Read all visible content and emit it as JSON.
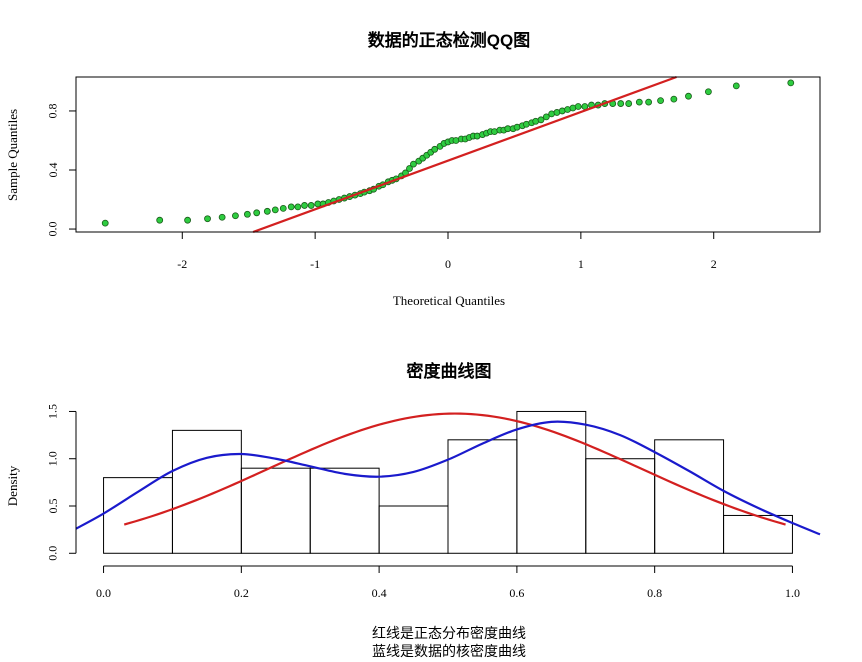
{
  "chart_data": [
    {
      "type": "scatter",
      "title": "数据的正态检测QQ图",
      "xlabel": "Theoretical Quantiles",
      "ylabel": "Sample Quantiles",
      "xlim": [
        -2.8,
        2.8
      ],
      "ylim": [
        -0.02,
        1.03
      ],
      "xticks": [
        -2,
        -1,
        0,
        1,
        2
      ],
      "yticks": [
        0.0,
        0.4,
        0.8
      ],
      "grid": false,
      "colors": {
        "points": "#2ecc40",
        "point_edge": "#1a5c1a",
        "reference_line": "#d32020"
      },
      "points": [
        [
          -2.58,
          0.04
        ],
        [
          -2.17,
          0.06
        ],
        [
          -1.96,
          0.06
        ],
        [
          -1.81,
          0.07
        ],
        [
          -1.7,
          0.08
        ],
        [
          -1.6,
          0.09
        ],
        [
          -1.51,
          0.1
        ],
        [
          -1.44,
          0.11
        ],
        [
          -1.36,
          0.12
        ],
        [
          -1.3,
          0.13
        ],
        [
          -1.24,
          0.14
        ],
        [
          -1.18,
          0.15
        ],
        [
          -1.13,
          0.15
        ],
        [
          -1.08,
          0.16
        ],
        [
          -1.03,
          0.16
        ],
        [
          -0.98,
          0.17
        ],
        [
          -0.94,
          0.17
        ],
        [
          -0.9,
          0.18
        ],
        [
          -0.86,
          0.19
        ],
        [
          -0.82,
          0.2
        ],
        [
          -0.78,
          0.21
        ],
        [
          -0.74,
          0.22
        ],
        [
          -0.7,
          0.23
        ],
        [
          -0.66,
          0.24
        ],
        [
          -0.63,
          0.25
        ],
        [
          -0.59,
          0.26
        ],
        [
          -0.56,
          0.27
        ],
        [
          -0.52,
          0.29
        ],
        [
          -0.49,
          0.3
        ],
        [
          -0.45,
          0.32
        ],
        [
          -0.42,
          0.33
        ],
        [
          -0.39,
          0.34
        ],
        [
          -0.35,
          0.36
        ],
        [
          -0.32,
          0.38
        ],
        [
          -0.29,
          0.41
        ],
        [
          -0.26,
          0.44
        ],
        [
          -0.22,
          0.46
        ],
        [
          -0.19,
          0.48
        ],
        [
          -0.16,
          0.5
        ],
        [
          -0.13,
          0.52
        ],
        [
          -0.1,
          0.54
        ],
        [
          -0.06,
          0.56
        ],
        [
          -0.03,
          0.58
        ],
        [
          0.0,
          0.59
        ],
        [
          0.03,
          0.6
        ],
        [
          0.06,
          0.6
        ],
        [
          0.1,
          0.61
        ],
        [
          0.13,
          0.61
        ],
        [
          0.16,
          0.62
        ],
        [
          0.19,
          0.63
        ],
        [
          0.22,
          0.63
        ],
        [
          0.26,
          0.64
        ],
        [
          0.29,
          0.65
        ],
        [
          0.32,
          0.66
        ],
        [
          0.35,
          0.66
        ],
        [
          0.39,
          0.67
        ],
        [
          0.42,
          0.67
        ],
        [
          0.45,
          0.68
        ],
        [
          0.49,
          0.68
        ],
        [
          0.52,
          0.69
        ],
        [
          0.56,
          0.7
        ],
        [
          0.59,
          0.71
        ],
        [
          0.63,
          0.72
        ],
        [
          0.66,
          0.73
        ],
        [
          0.7,
          0.74
        ],
        [
          0.74,
          0.76
        ],
        [
          0.78,
          0.78
        ],
        [
          0.82,
          0.79
        ],
        [
          0.86,
          0.8
        ],
        [
          0.9,
          0.81
        ],
        [
          0.94,
          0.82
        ],
        [
          0.98,
          0.83
        ],
        [
          1.03,
          0.83
        ],
        [
          1.08,
          0.84
        ],
        [
          1.13,
          0.84
        ],
        [
          1.18,
          0.85
        ],
        [
          1.24,
          0.85
        ],
        [
          1.3,
          0.85
        ],
        [
          1.36,
          0.85
        ],
        [
          1.44,
          0.86
        ],
        [
          1.51,
          0.86
        ],
        [
          1.6,
          0.87
        ],
        [
          1.7,
          0.88
        ],
        [
          1.81,
          0.9
        ],
        [
          1.96,
          0.93
        ],
        [
          2.17,
          0.97
        ],
        [
          2.58,
          0.99
        ]
      ],
      "reference_line": {
        "intercept": 0.4633,
        "slope": 0.3295
      }
    },
    {
      "type": "histogram",
      "title": "密度曲线图",
      "xlabel": "",
      "ylabel": "Density",
      "xlim": [
        -0.04,
        1.04
      ],
      "ylim": [
        -0.05,
        1.6
      ],
      "xticks": [
        0.0,
        0.2,
        0.4,
        0.6,
        0.8,
        1.0
      ],
      "yticks": [
        0.0,
        0.5,
        1.0,
        1.5
      ],
      "grid": false,
      "bins": [
        {
          "x0": 0.0,
          "x1": 0.1,
          "density": 0.8
        },
        {
          "x0": 0.1,
          "x1": 0.2,
          "density": 1.3
        },
        {
          "x0": 0.2,
          "x1": 0.3,
          "density": 0.9
        },
        {
          "x0": 0.3,
          "x1": 0.4,
          "density": 0.9
        },
        {
          "x0": 0.4,
          "x1": 0.5,
          "density": 0.5
        },
        {
          "x0": 0.5,
          "x1": 0.6,
          "density": 1.2
        },
        {
          "x0": 0.6,
          "x1": 0.7,
          "density": 1.5
        },
        {
          "x0": 0.7,
          "x1": 0.8,
          "density": 1.0
        },
        {
          "x0": 0.8,
          "x1": 0.9,
          "density": 1.2
        },
        {
          "x0": 0.9,
          "x1": 1.0,
          "density": 0.4
        }
      ],
      "normal_curve": {
        "color": "#d32020",
        "mean": 0.51,
        "sd": 0.27,
        "x_range": [
          0.03,
          0.99
        ]
      },
      "kernel_density": {
        "color": "#1a1acc",
        "points": [
          [
            -0.04,
            0.26
          ],
          [
            0.0,
            0.42
          ],
          [
            0.05,
            0.65
          ],
          [
            0.1,
            0.87
          ],
          [
            0.15,
            1.01
          ],
          [
            0.2,
            1.05
          ],
          [
            0.25,
            1.0
          ],
          [
            0.3,
            0.92
          ],
          [
            0.35,
            0.84
          ],
          [
            0.4,
            0.81
          ],
          [
            0.45,
            0.86
          ],
          [
            0.5,
            0.99
          ],
          [
            0.55,
            1.16
          ],
          [
            0.6,
            1.31
          ],
          [
            0.65,
            1.39
          ],
          [
            0.7,
            1.36
          ],
          [
            0.75,
            1.25
          ],
          [
            0.8,
            1.07
          ],
          [
            0.85,
            0.87
          ],
          [
            0.9,
            0.66
          ],
          [
            0.95,
            0.48
          ],
          [
            1.0,
            0.32
          ],
          [
            1.04,
            0.2
          ]
        ]
      }
    }
  ],
  "caption": {
    "line1": "红线是正态分布密度曲线",
    "line2": "蓝线是数据的核密度曲线"
  }
}
